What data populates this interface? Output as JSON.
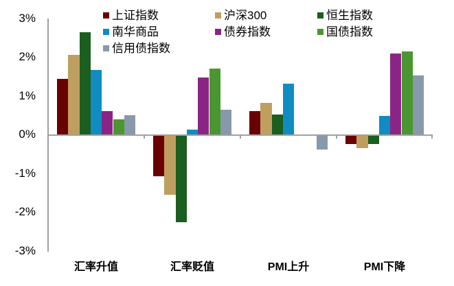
{
  "chart_data": {
    "type": "bar",
    "title": "",
    "xlabel": "",
    "ylabel": "",
    "ylim": [
      -3,
      3
    ],
    "yticks": [
      "3%",
      "2%",
      "1%",
      "0%",
      "-1%",
      "-2%",
      "-3%"
    ],
    "grid": false,
    "legend_position": "top-inside",
    "categories": [
      "汇率升值",
      "汇率贬值",
      "PMI上升",
      "PMI下降"
    ],
    "series": [
      {
        "name": "上证指数",
        "color": "#6B0000",
        "values": [
          1.45,
          -1.06,
          0.62,
          -0.23
        ]
      },
      {
        "name": "沪深300",
        "color": "#BF9F60",
        "values": [
          2.07,
          -1.54,
          0.83,
          -0.33
        ]
      },
      {
        "name": "恒生指数",
        "color": "#1A5E20",
        "values": [
          2.65,
          -2.24,
          0.53,
          -0.23
        ]
      },
      {
        "name": "南华商品",
        "color": "#108CC2",
        "values": [
          1.68,
          0.15,
          1.33,
          0.49
        ]
      },
      {
        "name": "债券指数",
        "color": "#8B2585",
        "values": [
          0.62,
          1.49,
          0.0,
          2.1
        ]
      },
      {
        "name": "国债指数",
        "color": "#4A9630",
        "values": [
          0.41,
          1.72,
          0.0,
          2.16
        ]
      },
      {
        "name": "信用债指数",
        "color": "#8799AA",
        "values": [
          0.51,
          0.66,
          -0.38,
          1.54
        ]
      }
    ]
  }
}
